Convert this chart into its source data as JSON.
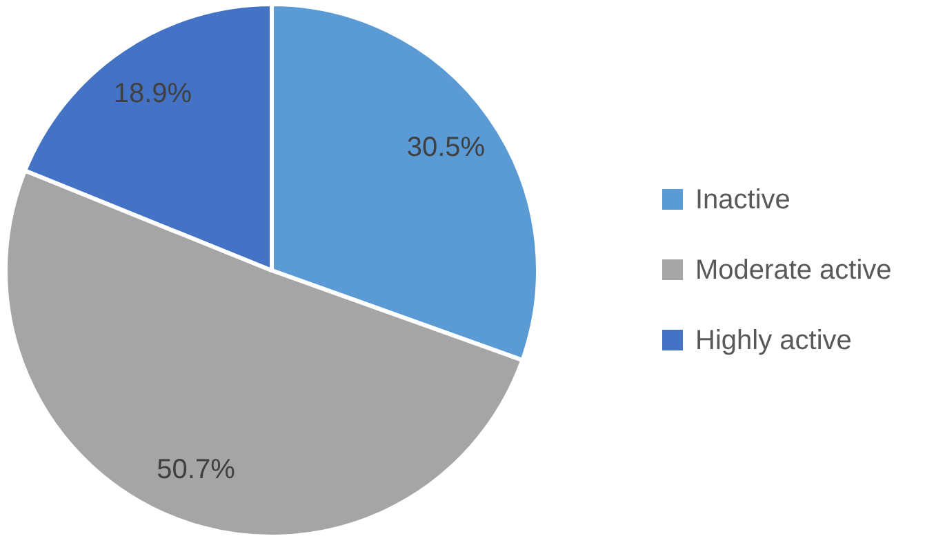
{
  "chart_data": {
    "type": "pie",
    "categories": [
      "Inactive",
      "Moderate active",
      "Highly active"
    ],
    "values": [
      30.5,
      50.7,
      18.9
    ],
    "value_labels": [
      "30.5%",
      "50.7%",
      "18.9%"
    ],
    "colors": [
      "#5b9bd5",
      "#a5a5a5",
      "#4472c4"
    ],
    "legend": "right"
  }
}
